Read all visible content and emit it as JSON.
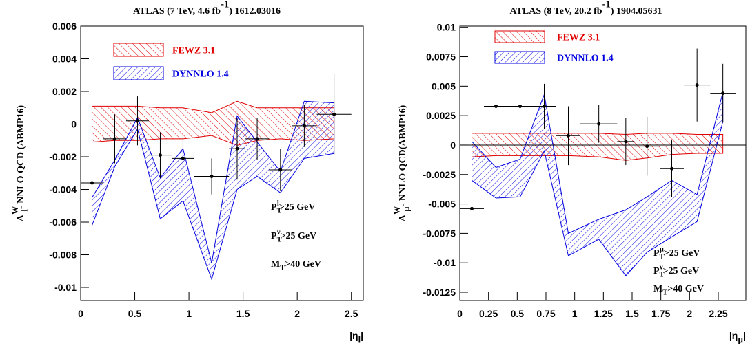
{
  "chart_data": [
    {
      "type": "errorbar",
      "title": [
        {
          "text": "ATLAS (7 TeV, 4.6 fb"
        },
        {
          "text": "-1",
          "script": "sup"
        },
        {
          "text": ") 1612.03016"
        }
      ],
      "y_label": [
        {
          "text": "A"
        },
        {
          "text": "W",
          "script": "sup"
        },
        {
          "text": "l",
          "script": "sub"
        },
        {
          "text": "- NNLO QCD (ABMP16)"
        }
      ],
      "x_label": [
        {
          "text": "|η"
        },
        {
          "text": "l",
          "script": "sub"
        },
        {
          "text": "|"
        }
      ],
      "annotations": [
        [
          {
            "text": "P"
          },
          {
            "text": "T",
            "script": "sub"
          },
          {
            "text": "l",
            "script": "sup"
          },
          {
            "text": ">25 GeV"
          }
        ],
        [
          {
            "text": "P"
          },
          {
            "text": "T",
            "script": "sub"
          },
          {
            "text": "ν",
            "script": "sup"
          },
          {
            "text": ">25 GeV"
          }
        ],
        [
          {
            "text": "M"
          },
          {
            "text": "T",
            "script": "sub"
          },
          {
            "text": ">40 GeV"
          }
        ]
      ],
      "xlim": [
        0,
        2.61
      ],
      "xticks": [
        0,
        0.5,
        1,
        1.5,
        2,
        2.5
      ],
      "ylim": [
        -0.0108,
        0.006
      ],
      "yticks": [
        0.006,
        0.004,
        0.002,
        0,
        -0.002,
        -0.004,
        -0.006,
        -0.008,
        -0.01
      ],
      "points": {
        "color": "#000000",
        "x": [
          0.105,
          0.315,
          0.525,
          0.735,
          0.945,
          1.21,
          1.445,
          1.63,
          1.845,
          2.065,
          2.34
        ],
        "xerr": [
          0.105,
          0.105,
          0.105,
          0.105,
          0.105,
          0.16,
          0.075,
          0.11,
          0.105,
          0.115,
          0.16
        ],
        "values": [
          -0.0036,
          -0.0009,
          0.0002,
          -0.0019,
          -0.0021,
          -0.0032,
          -0.0015,
          -0.0009,
          -0.0028,
          -0.0001,
          0.0006
        ],
        "yerr": [
          0.0017,
          0.0015,
          0.0015,
          0.0014,
          0.0014,
          0.0011,
          0.0019,
          0.0013,
          0.0013,
          0.0013,
          0.0025
        ]
      },
      "bands": [
        {
          "name": "FEWZ 3.1",
          "color": "#e00000",
          "hatch": "forward",
          "x": [
            0.105,
            0.315,
            0.525,
            0.735,
            0.945,
            1.21,
            1.445,
            1.63,
            1.845,
            2.065,
            2.34
          ],
          "upper": [
            0.0011,
            0.0011,
            0.0011,
            0.001,
            0.001,
            0.0007,
            0.0014,
            0.001,
            0.001,
            0.001,
            0.001
          ],
          "lower": [
            -0.0011,
            -0.001,
            -0.001,
            -0.0009,
            -0.0009,
            -0.0007,
            -0.0013,
            -0.001,
            -0.0009,
            -0.001,
            -0.0009
          ]
        },
        {
          "name": "DYNNLO 1.4",
          "color": "#0000e0",
          "hatch": "back",
          "x": [
            0.105,
            0.315,
            0.525,
            0.735,
            0.945,
            1.21,
            1.445,
            1.63,
            1.845,
            2.065,
            2.34
          ],
          "upper": [
            -0.0045,
            -0.0022,
            0.0004,
            -0.0033,
            -0.0015,
            -0.0085,
            0.0005,
            -0.0011,
            -0.0029,
            0.0014,
            0.0013
          ],
          "lower": [
            -0.0062,
            -0.0026,
            -0.0003,
            -0.0058,
            -0.0047,
            -0.0095,
            -0.004,
            -0.0032,
            -0.0042,
            -0.0021,
            -0.0018
          ]
        }
      ]
    },
    {
      "type": "errorbar",
      "title": [
        {
          "text": "ATLAS (8 TeV, 20.2 fb"
        },
        {
          "text": "-1",
          "script": "sup"
        },
        {
          "text": ") 1904.05631"
        }
      ],
      "y_label": [
        {
          "text": "A"
        },
        {
          "text": "W",
          "script": "sup"
        },
        {
          "text": "μ",
          "script": "sub"
        },
        {
          "text": "- NNLO QCD(ABMP16)"
        }
      ],
      "x_label": [
        {
          "text": "|η"
        },
        {
          "text": "μ",
          "script": "sub"
        },
        {
          "text": "|"
        }
      ],
      "annotations": [
        [
          {
            "text": "P"
          },
          {
            "text": "T",
            "script": "sub"
          },
          {
            "text": "μ",
            "script": "sup"
          },
          {
            "text": ">25 GeV"
          }
        ],
        [
          {
            "text": "P"
          },
          {
            "text": "T",
            "script": "sub"
          },
          {
            "text": "ν",
            "script": "sup"
          },
          {
            "text": ">25 GeV"
          }
        ],
        [
          {
            "text": "M"
          },
          {
            "text": "T",
            "script": "sub"
          },
          {
            "text": ">40 GeV"
          }
        ]
      ],
      "xlim": [
        0,
        2.49
      ],
      "xticks": [
        0,
        0.25,
        0.5,
        0.75,
        1,
        1.25,
        1.5,
        1.75,
        2,
        2.25
      ],
      "ylim": [
        -0.0132,
        0.0101
      ],
      "yticks": [
        0.01,
        0.0075,
        0.005,
        0.0025,
        0,
        -0.0025,
        -0.005,
        -0.0075,
        -0.01,
        -0.0125
      ],
      "points": {
        "color": "#000000",
        "x": [
          0.105,
          0.315,
          0.525,
          0.735,
          0.945,
          1.21,
          1.445,
          1.63,
          1.845,
          2.065,
          2.29
        ],
        "xerr": [
          0.105,
          0.105,
          0.105,
          0.105,
          0.105,
          0.16,
          0.075,
          0.11,
          0.105,
          0.115,
          0.11
        ],
        "values": [
          -0.0054,
          0.0033,
          0.0033,
          0.0033,
          0.0008,
          0.0018,
          0.0003,
          -0.0001,
          -0.002,
          0.0051,
          0.0044
        ],
        "yerr": [
          0.0021,
          0.0025,
          0.003,
          0.0019,
          0.0025,
          0.0016,
          0.002,
          0.0025,
          0.0024,
          0.0031,
          0.0025
        ]
      },
      "bands": [
        {
          "name": "FEWZ 3.1",
          "color": "#e00000",
          "hatch": "forward",
          "x": [
            0.105,
            0.315,
            0.525,
            0.735,
            0.945,
            1.21,
            1.445,
            1.63,
            1.845,
            2.065,
            2.29
          ],
          "upper": [
            0.001,
            0.001,
            0.001,
            0.001,
            0.001,
            0.001,
            0.0009,
            0.001,
            0.001,
            0.0009,
            0.0009
          ],
          "lower": [
            -0.001,
            -0.0009,
            -0.0009,
            -0.0009,
            -0.0009,
            -0.001,
            -0.0013,
            -0.0011,
            -0.0008,
            -0.0007,
            -0.0007
          ]
        },
        {
          "name": "DYNNLO 1.4",
          "color": "#0000e0",
          "hatch": "back",
          "x": [
            0.105,
            0.315,
            0.525,
            0.735,
            0.945,
            1.21,
            1.445,
            1.63,
            1.845,
            2.065,
            2.29
          ],
          "upper": [
            0.0003,
            -0.0019,
            -0.0012,
            0.0043,
            -0.0075,
            -0.0063,
            -0.0055,
            -0.0044,
            -0.003,
            -0.0042,
            0.0045
          ],
          "lower": [
            -0.003,
            -0.0045,
            -0.0044,
            -0.0005,
            -0.0094,
            -0.008,
            -0.0111,
            -0.0091,
            -0.0078,
            -0.0065,
            0.002
          ]
        }
      ]
    }
  ]
}
